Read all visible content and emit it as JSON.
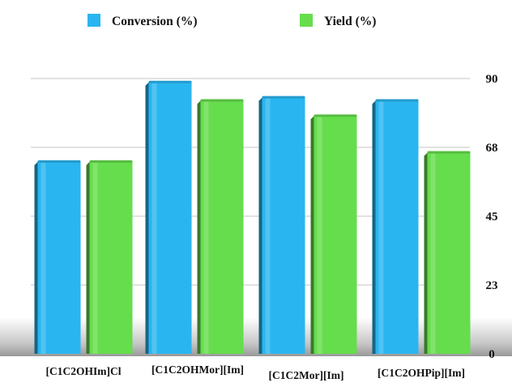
{
  "chart_data": {
    "type": "bar",
    "title": "",
    "xlabel": "",
    "ylabel": "",
    "categories": [
      "[C1C2OHIm]Cl",
      "[C1C2OHMor][Im]",
      "[C1C2Mor][Im]",
      "[C1C2OHPip][Im]"
    ],
    "series": [
      {
        "name": "Conversion (%)",
        "color": "#29b6f0",
        "values": [
          63,
          89,
          84,
          83
        ]
      },
      {
        "name": "Yield (%)",
        "color": "#66dd4c",
        "values": [
          63,
          83,
          78,
          66
        ]
      }
    ],
    "ylim": [
      0,
      90
    ],
    "yticks": [
      "0",
      "23",
      "45",
      "68",
      "90"
    ],
    "ytick_values": [
      0,
      22.5,
      45,
      67.5,
      90
    ],
    "y_axis_position": "right",
    "grid": true,
    "legend_position": "top"
  }
}
